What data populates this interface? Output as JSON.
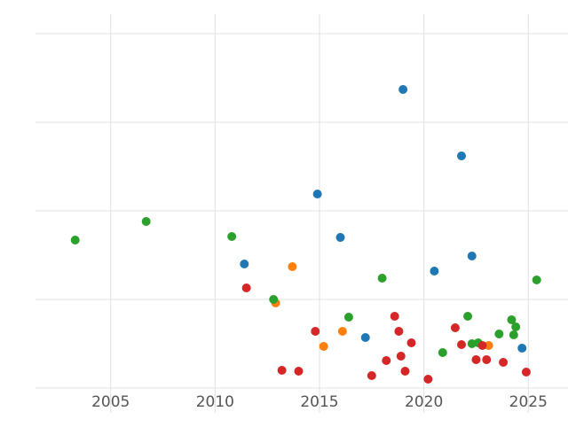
{
  "figure": {
    "background_color": "#ffffff",
    "grid_color": "#e0e0e0",
    "tick_label_color": "#555555"
  },
  "chart_data": {
    "type": "scatter",
    "title": "",
    "xlabel": "",
    "ylabel": "",
    "grid": true,
    "legend": "none",
    "marker_radius": 5,
    "x_ticks": [
      2005,
      2010,
      2015,
      2020,
      2025
    ],
    "xlim": [
      2001.4,
      2026.9
    ],
    "y_gridlines": [
      0,
      1,
      2,
      3,
      4
    ],
    "ylim": [
      -0.28,
      4.22
    ],
    "y_tick_labels_visible": false,
    "series": [
      {
        "name": "blue",
        "color": "#1f77b4",
        "points": [
          [
            2019.0,
            3.37
          ],
          [
            2021.8,
            2.62
          ],
          [
            2014.9,
            2.19
          ],
          [
            2016.0,
            1.7
          ],
          [
            2011.4,
            1.4
          ],
          [
            2022.3,
            1.49
          ],
          [
            2020.5,
            1.32
          ],
          [
            2017.2,
            0.57
          ],
          [
            2024.7,
            0.45
          ]
        ]
      },
      {
        "name": "orange",
        "color": "#ff7f0e",
        "points": [
          [
            2013.7,
            1.37
          ],
          [
            2012.9,
            0.96
          ],
          [
            2015.2,
            0.47
          ],
          [
            2016.1,
            0.64
          ],
          [
            2023.1,
            0.48
          ]
        ]
      },
      {
        "name": "green",
        "color": "#2ca02c",
        "points": [
          [
            2003.3,
            1.67
          ],
          [
            2006.7,
            1.88
          ],
          [
            2010.8,
            1.71
          ],
          [
            2012.8,
            1.0
          ],
          [
            2018.0,
            1.24
          ],
          [
            2016.4,
            0.8
          ],
          [
            2020.9,
            0.4
          ],
          [
            2022.1,
            0.81
          ],
          [
            2022.3,
            0.5
          ],
          [
            2022.6,
            0.51
          ],
          [
            2023.6,
            0.61
          ],
          [
            2024.2,
            0.77
          ],
          [
            2024.4,
            0.69
          ],
          [
            2024.3,
            0.6
          ],
          [
            2025.4,
            1.22
          ]
        ]
      },
      {
        "name": "red",
        "color": "#d62728",
        "points": [
          [
            2011.5,
            1.13
          ],
          [
            2014.8,
            0.64
          ],
          [
            2013.2,
            0.2
          ],
          [
            2014.0,
            0.19
          ],
          [
            2017.5,
            0.14
          ],
          [
            2018.2,
            0.31
          ],
          [
            2018.6,
            0.81
          ],
          [
            2018.8,
            0.64
          ],
          [
            2018.9,
            0.36
          ],
          [
            2019.1,
            0.19
          ],
          [
            2019.4,
            0.51
          ],
          [
            2020.2,
            0.1
          ],
          [
            2021.5,
            0.68
          ],
          [
            2021.8,
            0.49
          ],
          [
            2022.5,
            0.32
          ],
          [
            2022.8,
            0.48
          ],
          [
            2023.0,
            0.32
          ],
          [
            2023.8,
            0.29
          ],
          [
            2024.9,
            0.18
          ]
        ]
      }
    ]
  }
}
